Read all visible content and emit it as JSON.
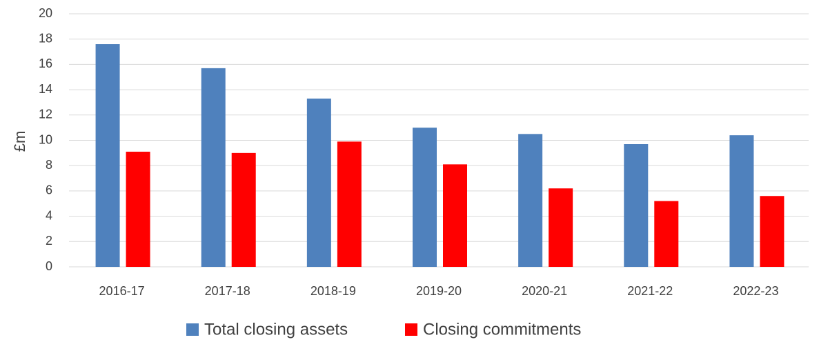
{
  "chart_data": {
    "type": "bar",
    "y_label": "£m",
    "categories": [
      "2016-17",
      "2017-18",
      "2018-19",
      "2019-20",
      "2020-21",
      "2021-22",
      "2022-23"
    ],
    "series": [
      {
        "name": "Total closing assets",
        "color": "#4f81bd",
        "values": [
          17.6,
          15.7,
          13.3,
          11.0,
          10.5,
          9.7,
          10.4
        ]
      },
      {
        "name": "Closing commitments",
        "color": "#ff0000",
        "values": [
          9.1,
          9.0,
          9.9,
          8.1,
          6.2,
          5.2,
          5.6
        ]
      }
    ],
    "ylim": [
      0,
      20
    ],
    "yticks": [
      0,
      2,
      4,
      6,
      8,
      10,
      12,
      14,
      16,
      18,
      20
    ],
    "grid": true,
    "legend": "bottom"
  }
}
